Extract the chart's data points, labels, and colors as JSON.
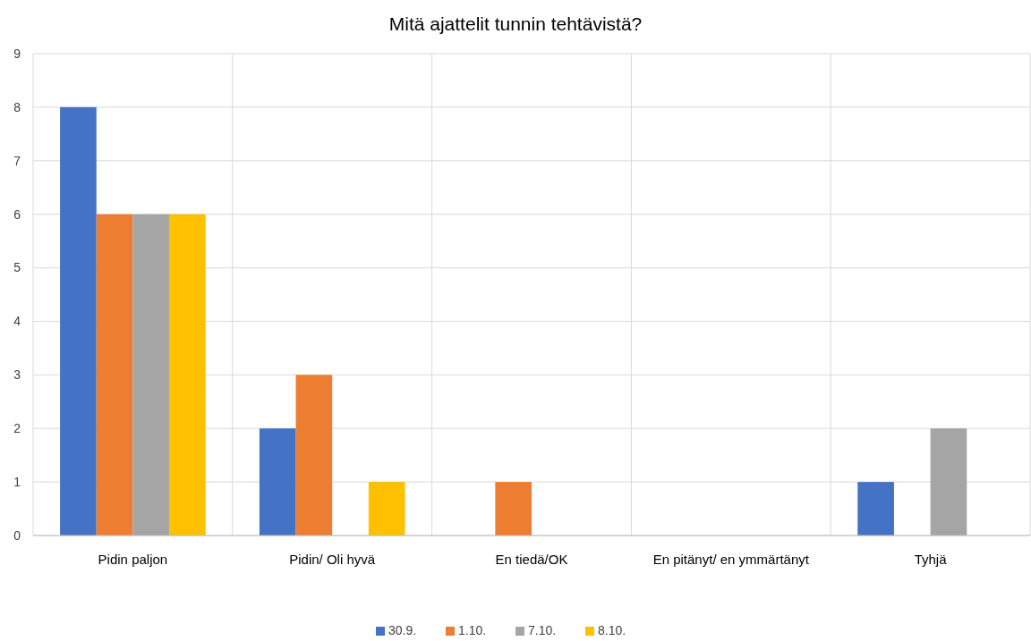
{
  "chart_data": {
    "type": "bar",
    "title": "Mitä ajattelit tunnin tehtävistä?",
    "categories": [
      "Pidin paljon",
      "Pidin/ Oli hyvä",
      "En tiedä/OK",
      "En pitänyt/ en ymmärtänyt",
      "Tyhjä"
    ],
    "series": [
      {
        "name": "30.9.",
        "color": "#4472c4",
        "values": [
          8,
          2,
          0,
          0,
          1
        ]
      },
      {
        "name": "1.10.",
        "color": "#ed7d31",
        "values": [
          6,
          3,
          1,
          0,
          0
        ]
      },
      {
        "name": "7.10.",
        "color": "#a5a5a5",
        "values": [
          6,
          0,
          0,
          0,
          2
        ]
      },
      {
        "name": "8.10.",
        "color": "#ffc000",
        "values": [
          6,
          1,
          0,
          0,
          0
        ]
      }
    ],
    "ylim": [
      0,
      9
    ],
    "yticks": [
      0,
      1,
      2,
      3,
      4,
      5,
      6,
      7,
      8,
      9
    ],
    "grid": true,
    "legend": "bottom"
  }
}
